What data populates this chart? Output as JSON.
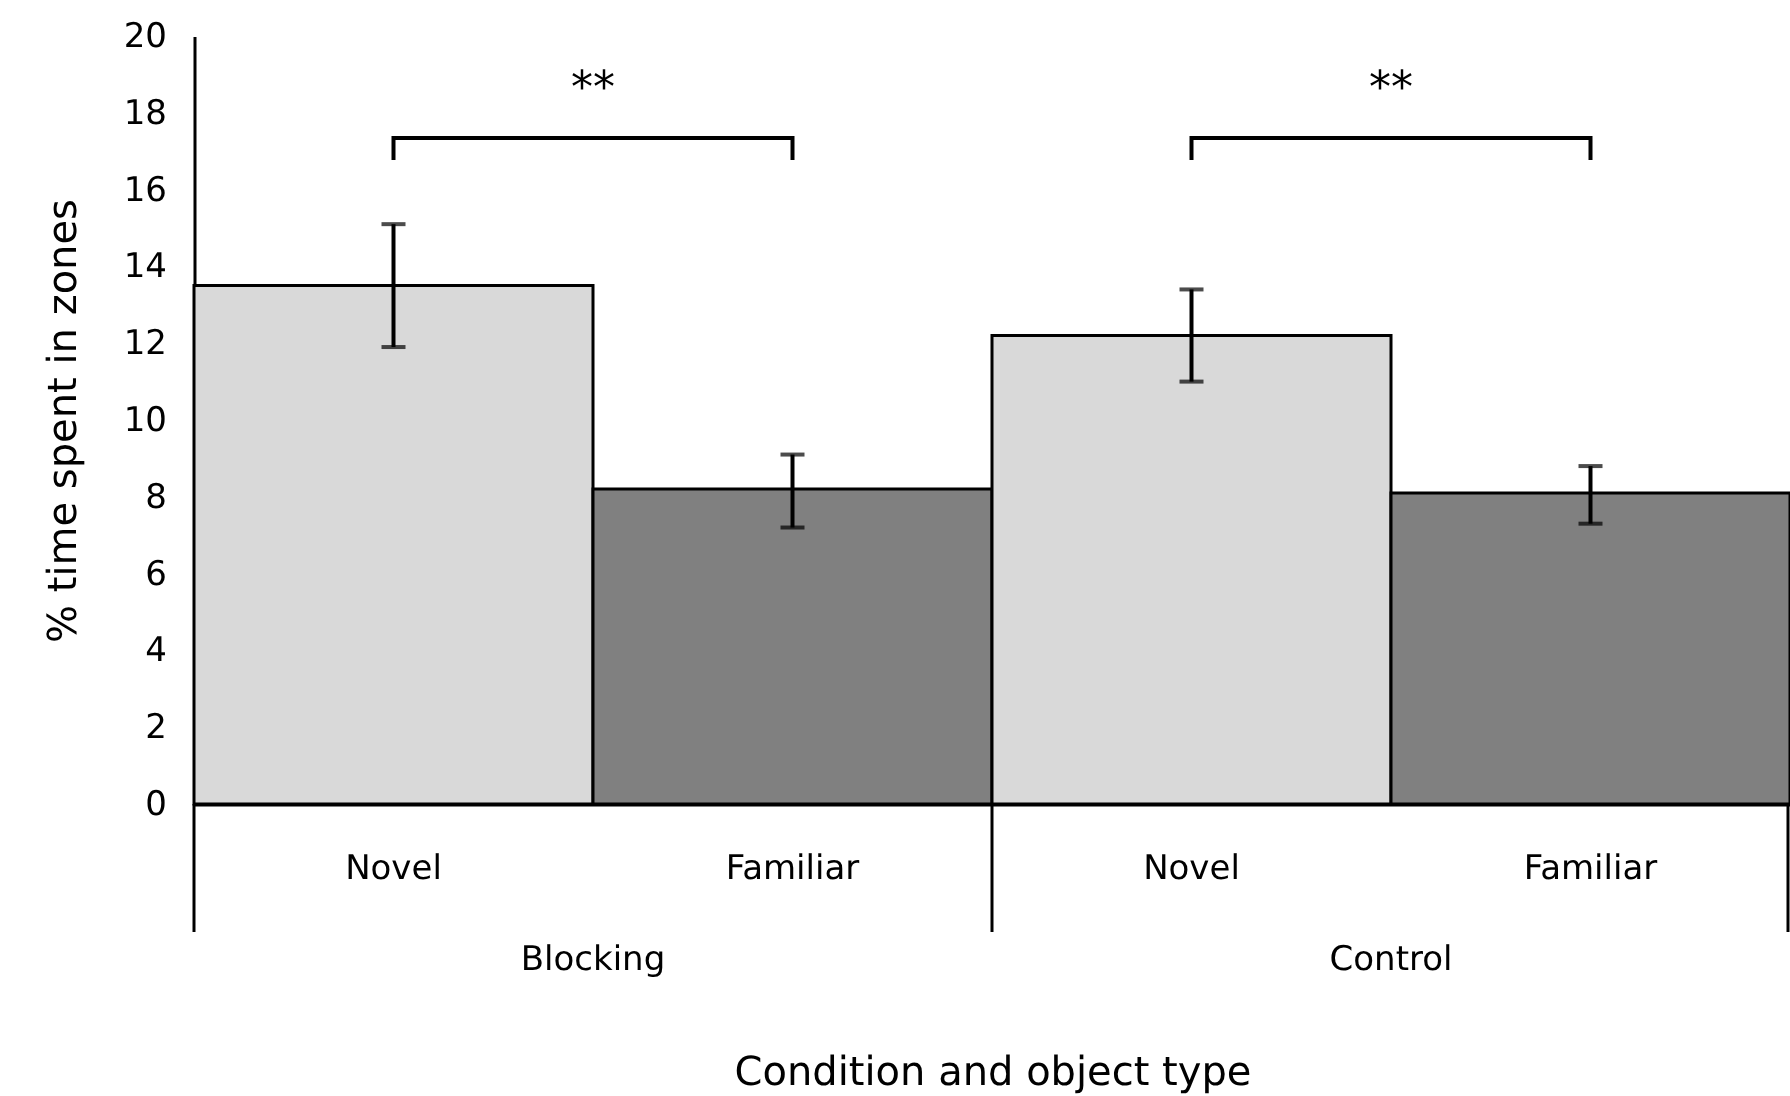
{
  "chart_data": {
    "type": "bar",
    "xlabel": "Condition and object type",
    "ylabel": "% time spent in zones",
    "categories": [
      "Novel",
      "Familiar",
      "Novel",
      "Familiar"
    ],
    "values": [
      13.5,
      8.2,
      12.2,
      8.1
    ],
    "colors": [
      "#d9d9d9",
      "#808080",
      "#d9d9d9",
      "#808080"
    ],
    "errors": [
      [
        11.9,
        15.1
      ],
      [
        7.2,
        9.1
      ],
      [
        11.0,
        13.4
      ],
      [
        7.3,
        8.8
      ]
    ],
    "ylim": [
      0,
      20
    ],
    "yticks": [
      0,
      2,
      4,
      6,
      8,
      10,
      12,
      14,
      16,
      18,
      20
    ],
    "annotations": [
      "Blocking",
      "Control",
      "**",
      "**"
    ]
  }
}
